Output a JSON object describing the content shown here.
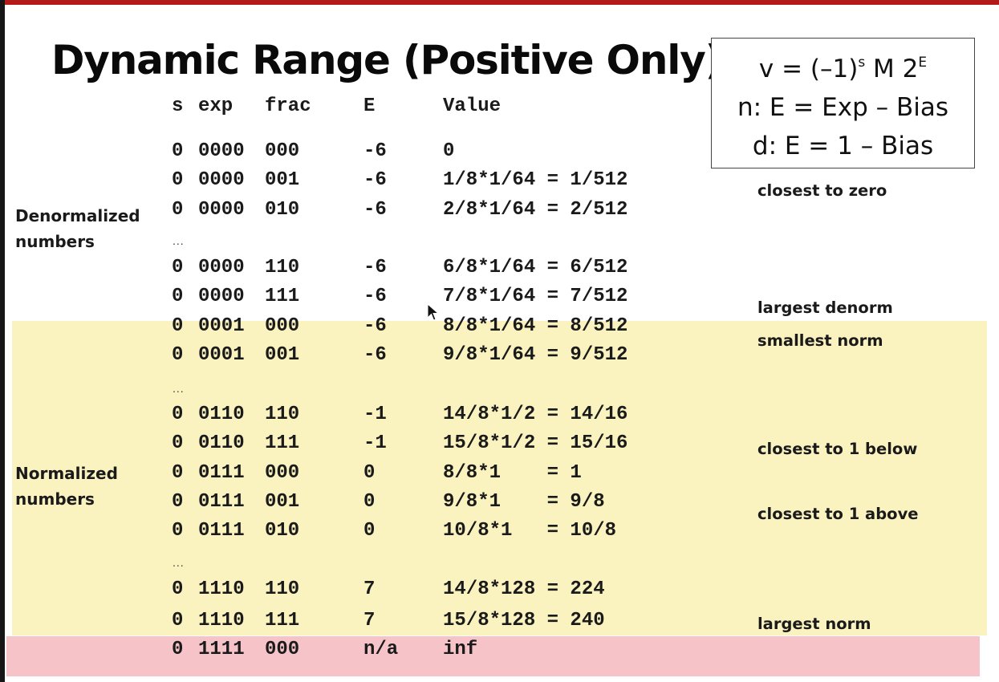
{
  "slide": {
    "title": "Dynamic Range (Positive Only)",
    "formula": {
      "line1_pre": "v = (–1)",
      "line1_sup_s": "s",
      "line1_mid": " M 2",
      "line1_sup_e": "E",
      "line2": "n: E = Exp – Bias",
      "line3": "d: E = 1 – Bias"
    },
    "headers": {
      "s": "s",
      "exp": "exp",
      "frac": "frac",
      "E": "E",
      "value": "Value"
    },
    "rows": [
      {
        "s": "0",
        "exp": "0000",
        "frac": "000",
        "E": "-6",
        "value": "0"
      },
      {
        "s": "0",
        "exp": "0000",
        "frac": "001",
        "E": "-6",
        "value": "1/8*1/64 = 1/512"
      },
      {
        "s": "0",
        "exp": "0000",
        "frac": "010",
        "E": "-6",
        "value": "2/8*1/64 = 2/512"
      },
      {
        "s": "0",
        "exp": "0000",
        "frac": "110",
        "E": "-6",
        "value": "6/8*1/64 = 6/512"
      },
      {
        "s": "0",
        "exp": "0000",
        "frac": "111",
        "E": "-6",
        "value": "7/8*1/64 = 7/512"
      },
      {
        "s": "0",
        "exp": "0001",
        "frac": "000",
        "E": "-6",
        "value": "8/8*1/64 = 8/512"
      },
      {
        "s": "0",
        "exp": "0001",
        "frac": "001",
        "E": "-6",
        "value": "9/8*1/64 = 9/512"
      },
      {
        "s": "0",
        "exp": "0110",
        "frac": "110",
        "E": "-1",
        "value": "14/8*1/2 = 14/16"
      },
      {
        "s": "0",
        "exp": "0110",
        "frac": "111",
        "E": "-1",
        "value": "15/8*1/2 = 15/16"
      },
      {
        "s": "0",
        "exp": "0111",
        "frac": "000",
        "E": "0",
        "value": "8/8*1    = 1"
      },
      {
        "s": "0",
        "exp": "0111",
        "frac": "001",
        "E": "0",
        "value": "9/8*1    = 9/8"
      },
      {
        "s": "0",
        "exp": "0111",
        "frac": "010",
        "E": "0",
        "value": "10/8*1   = 10/8"
      },
      {
        "s": "0",
        "exp": "1110",
        "frac": "110",
        "E": "7",
        "value": "14/8*128 = 224"
      },
      {
        "s": "0",
        "exp": "1110",
        "frac": "111",
        "E": "7",
        "value": "15/8*128 = 240"
      },
      {
        "s": "0",
        "exp": "1111",
        "frac": "000",
        "E": "n/a",
        "value": "inf"
      }
    ],
    "ellipsis": "...",
    "labels": {
      "denorm_line1": "Denormalized",
      "denorm_line2": "numbers",
      "norm_line1": "Normalized",
      "norm_line2": "numbers"
    },
    "notes": {
      "closest_zero": "closest to zero",
      "largest_denorm": "largest denorm",
      "smallest_norm": "smallest norm",
      "closest_1_below": "closest to 1 below",
      "closest_1_above": "closest to 1 above",
      "largest_norm": "largest norm"
    },
    "colors": {
      "normalized_band": "#faf3c0",
      "special_band": "#f6c4c8",
      "top_bar": "#b31b1b"
    }
  }
}
